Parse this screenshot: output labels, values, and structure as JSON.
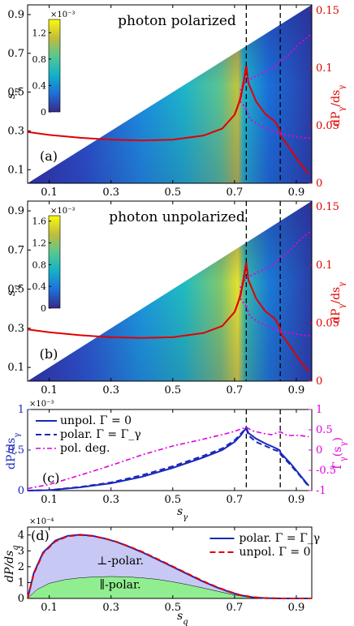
{
  "colors": {
    "red": "#e00000",
    "blue": "#1a28b8",
    "magenta": "#e000e0",
    "fill_perp": "#c8c8f4",
    "fill_par": "#90ee90"
  },
  "chart_data": [
    {
      "panel": "(a)",
      "type": "heatmap",
      "title": "photon polarized",
      "xlabel": "",
      "ylabel": "s_η",
      "y2label": "dP_γ/ds_γ",
      "xticks": [
        "0.1",
        "0.3",
        "0.5",
        "0.7",
        "0.9"
      ],
      "yticks": [
        "0.1",
        "0.3",
        "0.5",
        "0.7",
        "0.9"
      ],
      "y2ticks": [
        "0",
        "0.05",
        "0.1",
        "0.15"
      ],
      "xlim": [
        0.03,
        0.95
      ],
      "ylim": [
        0.03,
        0.95
      ],
      "y2lim": [
        0,
        0.155
      ],
      "colorbar": {
        "exponent": "×10⁻³",
        "ticks": [
          "0",
          "0.4",
          "0.8",
          "1.2"
        ],
        "max": 1.4
      },
      "vlines": [
        0.738,
        0.848
      ],
      "series": [
        {
          "x": [
            0.03,
            0.1,
            0.2,
            0.3,
            0.4,
            0.5,
            0.6,
            0.66,
            0.7,
            0.72,
            0.735,
            0.738,
            0.745,
            0.77,
            0.8,
            0.83,
            0.845,
            0.85,
            0.88,
            0.91,
            0.94
          ],
          "y": [
            0.0445,
            0.042,
            0.0395,
            0.0378,
            0.0372,
            0.0378,
            0.0415,
            0.0475,
            0.0595,
            0.074,
            0.098,
            0.102,
            0.087,
            0.071,
            0.06,
            0.054,
            0.047,
            0.041,
            0.03,
            0.018,
            0.008
          ]
        },
        {
          "x": [
            0.738,
            0.72,
            0.72,
            0.74,
            0.78,
            0.82,
            0.85,
            0.88,
            0.91,
            0.95
          ],
          "y": [
            0.4125,
            0.45,
            0.52,
            0.56,
            0.59,
            0.62,
            0.66,
            0.7,
            0.75,
            0.8
          ]
        },
        {
          "x": [
            0.738,
            0.75,
            0.78,
            0.82,
            0.85,
            0.88,
            0.91,
            0.95
          ],
          "y": [
            0.4125,
            0.36,
            0.33,
            0.3,
            0.285,
            0.275,
            0.268,
            0.26
          ]
        }
      ]
    },
    {
      "panel": "(b)",
      "type": "heatmap",
      "title": "photon unpolarized",
      "xlabel": "",
      "ylabel": "s_q",
      "y2label": "dP_γ/ds_γ",
      "xticks": [
        "0.1",
        "0.3",
        "0.5",
        "0.7",
        "0.9"
      ],
      "yticks": [
        "0.1",
        "0.3",
        "0.5",
        "0.7",
        "0.9"
      ],
      "y2ticks": [
        "0",
        "0.05",
        "0.1",
        "0.15"
      ],
      "xlim": [
        0.03,
        0.95
      ],
      "ylim": [
        0.03,
        0.95
      ],
      "y2lim": [
        0,
        0.155
      ],
      "colorbar": {
        "exponent": "×10⁻³",
        "ticks": [
          "0",
          "0.4",
          "0.8",
          "1.2",
          "1.6"
        ],
        "max": 1.7
      },
      "vlines": [
        0.738,
        0.848
      ],
      "series": [
        {
          "x": [
            0.03,
            0.1,
            0.2,
            0.3,
            0.4,
            0.5,
            0.6,
            0.66,
            0.7,
            0.72,
            0.735,
            0.738,
            0.745,
            0.77,
            0.8,
            0.83,
            0.845,
            0.85,
            0.88,
            0.91,
            0.94
          ],
          "y": [
            0.0445,
            0.042,
            0.0395,
            0.0378,
            0.0372,
            0.0378,
            0.0415,
            0.0475,
            0.0595,
            0.074,
            0.098,
            0.102,
            0.087,
            0.071,
            0.06,
            0.054,
            0.047,
            0.041,
            0.03,
            0.018,
            0.008
          ]
        },
        {
          "x": [
            0.738,
            0.72,
            0.72,
            0.74,
            0.78,
            0.82,
            0.85,
            0.88,
            0.91,
            0.95
          ],
          "y": [
            0.4125,
            0.45,
            0.52,
            0.56,
            0.59,
            0.62,
            0.66,
            0.7,
            0.75,
            0.8
          ]
        },
        {
          "x": [
            0.738,
            0.75,
            0.78,
            0.82,
            0.85,
            0.88,
            0.91,
            0.95
          ],
          "y": [
            0.4125,
            0.36,
            0.33,
            0.3,
            0.285,
            0.275,
            0.268,
            0.26
          ]
        }
      ]
    },
    {
      "panel": "(c)",
      "type": "line",
      "xlabel": "s_γ",
      "ylabel": "dP/ds_γ",
      "y2label": "Γ_γ(s_γ)",
      "yexponent": "×10⁻³",
      "xticks": [
        "0.1",
        "0.3",
        "0.5",
        "0.7",
        "0.9"
      ],
      "yticks": [
        "0",
        "0.5",
        "1"
      ],
      "y2ticks": [
        "-1",
        "-0.5",
        "0",
        "0.5",
        "1"
      ],
      "xlim": [
        0.03,
        0.95
      ],
      "ylim": [
        0,
        1.0
      ],
      "y2lim": [
        -1,
        1
      ],
      "vlines": [
        0.738,
        0.848
      ],
      "series": [
        {
          "name": "unpol. Γ = 0",
          "x": [
            0.03,
            0.1,
            0.2,
            0.3,
            0.4,
            0.5,
            0.6,
            0.66,
            0.7,
            0.72,
            0.735,
            0.738,
            0.745,
            0.77,
            0.8,
            0.83,
            0.845,
            0.85,
            0.88,
            0.91,
            0.94
          ],
          "y": [
            0.0,
            0.005,
            0.04,
            0.09,
            0.17,
            0.28,
            0.41,
            0.5,
            0.6,
            0.68,
            0.76,
            0.78,
            0.71,
            0.64,
            0.58,
            0.53,
            0.5,
            0.46,
            0.34,
            0.2,
            0.06
          ]
        },
        {
          "name": "polar. Γ = Γ_γ",
          "x": [
            0.03,
            0.1,
            0.2,
            0.3,
            0.4,
            0.5,
            0.6,
            0.66,
            0.7,
            0.72,
            0.735,
            0.738,
            0.745,
            0.77,
            0.8,
            0.83,
            0.845,
            0.85,
            0.88,
            0.91,
            0.94
          ],
          "y": [
            0.0,
            0.006,
            0.045,
            0.1,
            0.19,
            0.3,
            0.43,
            0.52,
            0.62,
            0.7,
            0.76,
            0.77,
            0.68,
            0.6,
            0.55,
            0.5,
            0.48,
            0.44,
            0.32,
            0.19,
            0.05
          ]
        },
        {
          "name": "pol. deg.",
          "x": [
            0.03,
            0.1,
            0.2,
            0.3,
            0.4,
            0.5,
            0.6,
            0.66,
            0.7,
            0.72,
            0.738,
            0.76,
            0.8,
            0.82,
            0.848,
            0.87,
            0.91,
            0.94
          ],
          "y": [
            -0.95,
            -0.85,
            -0.62,
            -0.38,
            -0.12,
            0.1,
            0.27,
            0.38,
            0.46,
            0.52,
            0.56,
            0.47,
            0.4,
            0.38,
            0.45,
            0.36,
            0.36,
            0.33
          ]
        }
      ]
    },
    {
      "panel": "(d)",
      "type": "area",
      "xlabel": "s_q",
      "ylabel": "dP/ds_q",
      "yexponent": "×10⁻⁴",
      "xticks": [
        "0.1",
        "0.3",
        "0.5",
        "0.7",
        "0.9"
      ],
      "yticks": [
        "0",
        "1",
        "2",
        "3",
        "4"
      ],
      "xlim": [
        0.03,
        0.95
      ],
      "ylim": [
        0,
        4.5
      ],
      "annotations": [
        "⊥-polar.",
        "∥-polar."
      ],
      "series": [
        {
          "name": "polar. Γ = Γ_γ",
          "x": [
            0.03,
            0.05,
            0.08,
            0.12,
            0.16,
            0.2,
            0.24,
            0.28,
            0.32,
            0.36,
            0.4,
            0.44,
            0.48,
            0.52,
            0.56,
            0.6,
            0.64,
            0.68,
            0.72,
            0.76,
            0.8,
            0.85,
            0.9,
            0.95
          ],
          "y": [
            0,
            1.6,
            2.9,
            3.65,
            3.95,
            4.02,
            3.95,
            3.78,
            3.55,
            3.25,
            2.92,
            2.55,
            2.18,
            1.8,
            1.42,
            1.05,
            0.72,
            0.43,
            0.2,
            0.07,
            0.02,
            0.0,
            0.0,
            0.0
          ]
        },
        {
          "name": "unpol. Γ = 0",
          "x": [
            0.03,
            0.05,
            0.08,
            0.12,
            0.16,
            0.2,
            0.24,
            0.28,
            0.32,
            0.36,
            0.4,
            0.44,
            0.48,
            0.52,
            0.56,
            0.6,
            0.64,
            0.68,
            0.72,
            0.76,
            0.8,
            0.85,
            0.9,
            0.95
          ],
          "y": [
            0,
            1.55,
            2.85,
            3.6,
            3.92,
            4.0,
            3.94,
            3.78,
            3.56,
            3.27,
            2.95,
            2.58,
            2.21,
            1.83,
            1.45,
            1.08,
            0.74,
            0.45,
            0.21,
            0.08,
            0.02,
            0.0,
            0.0,
            0.0
          ]
        },
        {
          "name": "∥-polar.",
          "x": [
            0.03,
            0.06,
            0.1,
            0.15,
            0.2,
            0.25,
            0.3,
            0.35,
            0.4,
            0.45,
            0.5,
            0.55,
            0.6,
            0.65,
            0.7,
            0.75,
            0.8,
            0.9,
            0.95
          ],
          "y": [
            0,
            0.55,
            0.95,
            1.18,
            1.3,
            1.36,
            1.38,
            1.36,
            1.3,
            1.2,
            1.05,
            0.86,
            0.65,
            0.43,
            0.22,
            0.07,
            0.01,
            0,
            0
          ]
        }
      ]
    }
  ],
  "panels": {
    "a": {
      "label": "(a)"
    },
    "b": {
      "label": "(b)"
    },
    "c": {
      "label": "(c)"
    },
    "d": {
      "label": "(d)"
    }
  }
}
